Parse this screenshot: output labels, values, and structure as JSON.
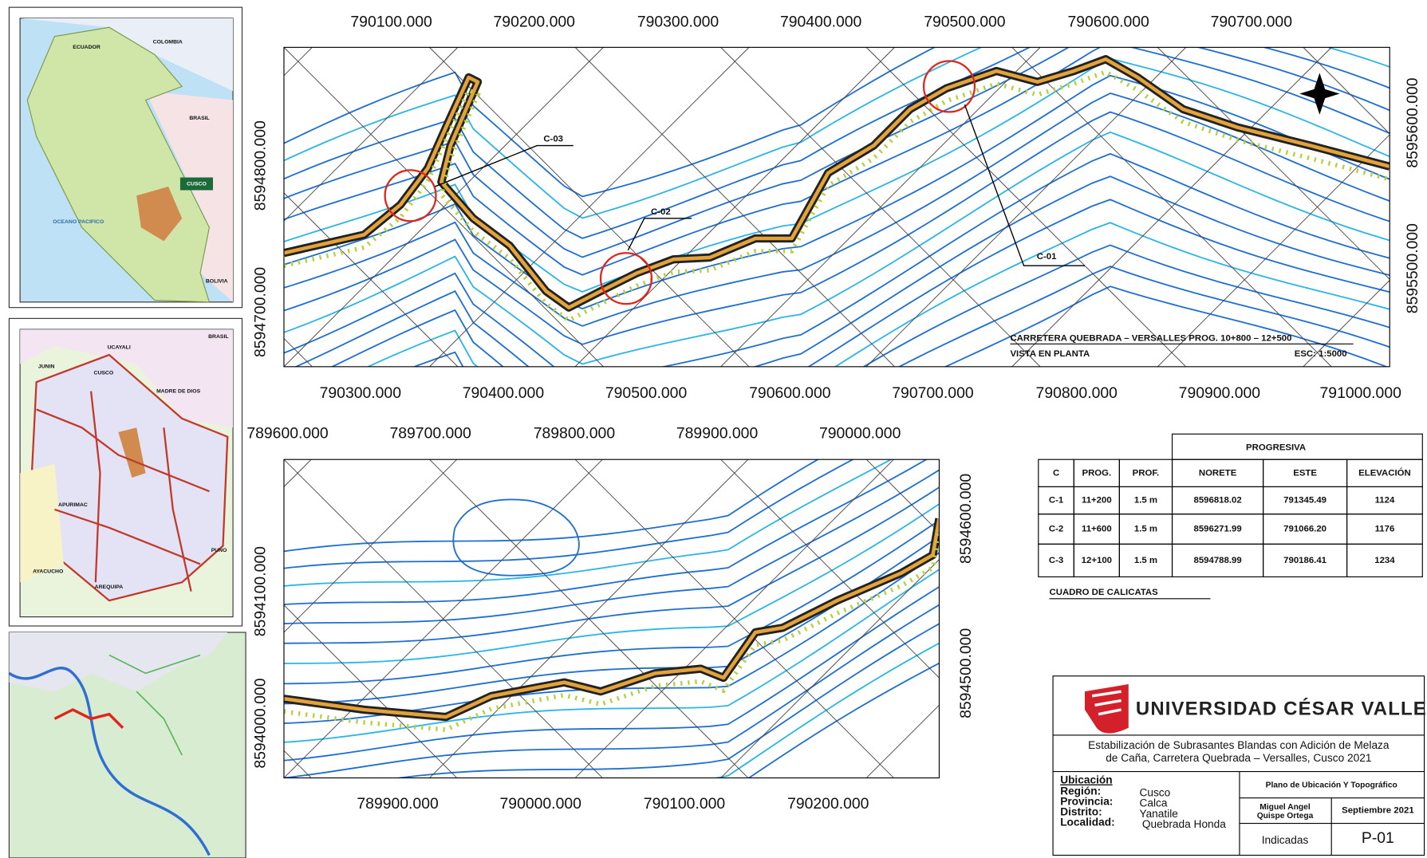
{
  "top_plan": {
    "x_top_labels": [
      "790100.000",
      "790200.000",
      "790300.000",
      "790400.000",
      "790500.000",
      "790600.000",
      "790700.000"
    ],
    "x_bottom_labels": [
      "790300.000",
      "790400.000",
      "790500.000",
      "790600.000",
      "790700.000",
      "790800.000",
      "790900.000",
      "791000.000"
    ],
    "y_left_labels": [
      "8594800.000",
      "8594700.000"
    ],
    "y_right_labels": [
      "8595600.000",
      "8595500.000"
    ],
    "callouts": [
      "C-03",
      "C-02",
      "C-01"
    ],
    "title": "CARRETERA QUEBRADA – VERSALLES PROG. 10+800 – 12+500",
    "subtitle": "VISTA EN PLANTA",
    "scale": "ESC: 1:5000"
  },
  "bottom_plan": {
    "x_top_labels": [
      "789600.000",
      "789700.000",
      "789800.000",
      "789900.000",
      "790000.000"
    ],
    "x_bottom_labels": [
      "789900.000",
      "790000.000",
      "790100.000",
      "790200.000"
    ],
    "y_left_labels": [
      "8594100.000",
      "8594000.000"
    ],
    "y_right_labels": [
      "8594600.000",
      "8594500.000"
    ]
  },
  "inset_peru": {
    "labels": [
      "ECUADOR",
      "COLOMBIA",
      "BRASIL",
      "CUSCO",
      "OCEANO PACIFICO",
      "BOLIVIA"
    ]
  },
  "inset_cusco": {
    "labels": [
      "UCAYALI",
      "JUNIN",
      "CUSCO",
      "MADRE DE DIOS",
      "BRASIL",
      "APURIMAC",
      "AYACUCHO",
      "PUNO",
      "AREQUIPA"
    ]
  },
  "table": {
    "group_header": "PROGRESIVA",
    "headers": [
      "C",
      "PROG.",
      "PROF.",
      "NORETE",
      "ESTE",
      "ELEVACIÓN"
    ],
    "rows": [
      [
        "C-1",
        "11+200",
        "1.5 m",
        "8596818.02",
        "791345.49",
        "1124"
      ],
      [
        "C-2",
        "11+600",
        "1.5 m",
        "8596271.99",
        "791066.20",
        "1176"
      ],
      [
        "C-3",
        "12+100",
        "1.5 m",
        "8594788.99",
        "790186.41",
        "1234"
      ]
    ],
    "caption": "CUADRO DE CALICATAS"
  },
  "title_block": {
    "university": "UNIVERSIDAD CÉSAR VALLEJO",
    "project": [
      "Estabilización de Subrasantes Blandas con Adición de Melaza",
      "de Caña, Carretera Quebrada – Versalles, Cusco 2021"
    ],
    "location_heading": "Ubicación",
    "location": [
      [
        "Región:",
        "Cusco"
      ],
      [
        "Provincia:",
        "Calca"
      ],
      [
        "Distrito:",
        "Yanatile"
      ],
      [
        "Localidad:",
        "Quebrada Honda"
      ]
    ],
    "sheet_title": "Plano de Ubicación Y Topográfico",
    "author": [
      "Miguel Angel",
      "Quispe Ortega"
    ],
    "date": "Septiembre 2021",
    "scale": "Indicadas",
    "sheet": "P-01"
  }
}
